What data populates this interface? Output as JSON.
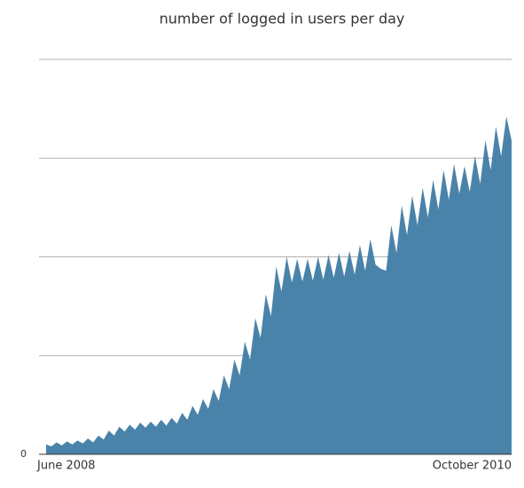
{
  "chart_data": {
    "type": "area",
    "title": "number of logged in users per day",
    "categories": [
      "June 2008",
      null,
      null,
      null,
      null,
      null,
      null,
      null,
      null,
      null,
      null,
      null,
      null,
      null,
      null,
      null,
      null,
      null,
      null,
      null,
      null,
      null,
      null,
      null,
      null,
      null,
      null,
      null,
      null,
      null,
      null,
      null,
      null,
      null,
      null,
      null,
      null,
      null,
      null,
      null,
      null,
      null,
      null,
      null,
      null,
      null,
      null,
      null,
      null,
      null,
      null,
      null,
      null,
      null,
      null,
      null,
      null,
      null,
      null,
      null,
      null,
      null,
      null,
      null,
      null,
      null,
      null,
      null,
      null,
      null,
      null,
      null,
      null,
      null,
      null,
      null,
      null,
      null,
      null,
      null,
      null,
      null,
      null,
      null,
      null,
      null,
      null,
      null,
      null,
      "October 2010"
    ],
    "values": [
      0.1,
      0.08,
      0.12,
      0.09,
      0.13,
      0.1,
      0.14,
      0.11,
      0.16,
      0.12,
      0.19,
      0.15,
      0.24,
      0.19,
      0.28,
      0.23,
      0.3,
      0.25,
      0.32,
      0.27,
      0.33,
      0.28,
      0.35,
      0.29,
      0.37,
      0.31,
      0.42,
      0.35,
      0.49,
      0.4,
      0.56,
      0.46,
      0.66,
      0.54,
      0.8,
      0.66,
      0.96,
      0.8,
      1.14,
      0.96,
      1.38,
      1.18,
      1.62,
      1.4,
      1.9,
      1.65,
      2.0,
      1.74,
      1.98,
      1.75,
      1.98,
      1.76,
      2.0,
      1.77,
      2.02,
      1.79,
      2.04,
      1.8,
      2.06,
      1.82,
      2.12,
      1.86,
      2.18,
      1.92,
      1.88,
      1.86,
      2.32,
      2.04,
      2.52,
      2.22,
      2.62,
      2.32,
      2.7,
      2.4,
      2.78,
      2.48,
      2.88,
      2.58,
      2.94,
      2.64,
      2.92,
      2.66,
      3.02,
      2.74,
      3.18,
      2.88,
      3.32,
      3.02,
      3.42,
      3.18
    ],
    "color": "#4a83aa",
    "ylim": [
      0,
      4
    ],
    "yticks": [
      0
    ],
    "grid_values": [
      0,
      1,
      2,
      3,
      4
    ]
  }
}
